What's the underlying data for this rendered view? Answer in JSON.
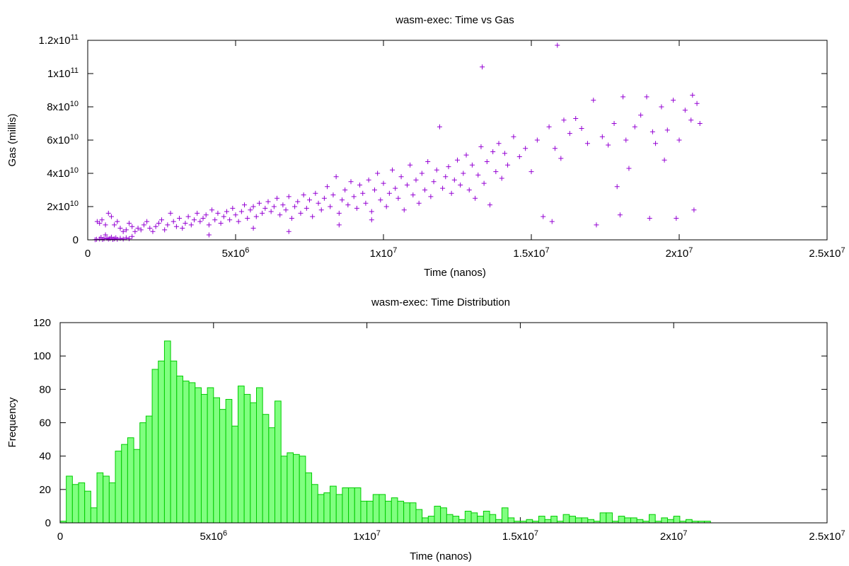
{
  "chart_data": [
    {
      "type": "scatter",
      "title": "wasm-exec: Time vs Gas",
      "xlabel": "Time (nanos)",
      "ylabel": "Gas (millis)",
      "xlim": [
        0,
        25000000
      ],
      "ylim": [
        0,
        120000000000
      ],
      "xticks": [
        {
          "value": 0,
          "base": "0",
          "exp": ""
        },
        {
          "value": 5000000,
          "base": "5x10",
          "exp": "6"
        },
        {
          "value": 10000000,
          "base": "1x10",
          "exp": "7"
        },
        {
          "value": 15000000,
          "base": "1.5x10",
          "exp": "7"
        },
        {
          "value": 20000000,
          "base": "2x10",
          "exp": "7"
        },
        {
          "value": 25000000,
          "base": "2.5x10",
          "exp": "7"
        }
      ],
      "yticks": [
        {
          "value": 0,
          "base": "0",
          "exp": ""
        },
        {
          "value": 20000000000,
          "base": "2x10",
          "exp": "10"
        },
        {
          "value": 40000000000,
          "base": "4x10",
          "exp": "10"
        },
        {
          "value": 60000000000,
          "base": "6x10",
          "exp": "10"
        },
        {
          "value": 80000000000,
          "base": "8x10",
          "exp": "10"
        },
        {
          "value": 100000000000,
          "base": "1x10",
          "exp": "11"
        },
        {
          "value": 120000000000,
          "base": "1.2x10",
          "exp": "11"
        }
      ],
      "marker": "+",
      "color": "#9400D3",
      "grid": false,
      "points": [
        [
          250000,
          100000000
        ],
        [
          300000,
          300000000
        ],
        [
          400000,
          500000000
        ],
        [
          450000,
          1500000000
        ],
        [
          500000,
          200000000
        ],
        [
          550000,
          600000000
        ],
        [
          600000,
          3000000000
        ],
        [
          650000,
          1000000000
        ],
        [
          700000,
          400000000
        ],
        [
          750000,
          800000000
        ],
        [
          800000,
          1600000000
        ],
        [
          850000,
          200000000
        ],
        [
          900000,
          600000000
        ],
        [
          950000,
          1200000000
        ],
        [
          1000000,
          300000000
        ],
        [
          1100000,
          900000000
        ],
        [
          1200000,
          500000000
        ],
        [
          1300000,
          1200000000
        ],
        [
          1400000,
          700000000
        ],
        [
          1500000,
          2000000000
        ],
        [
          320000,
          11000000000
        ],
        [
          400000,
          10000000000
        ],
        [
          480000,
          12000000000
        ],
        [
          600000,
          9000000000
        ],
        [
          700000,
          16000000000
        ],
        [
          800000,
          14000000000
        ],
        [
          900000,
          9000000000
        ],
        [
          1000000,
          11000000000
        ],
        [
          1100000,
          7000000000
        ],
        [
          1200000,
          5000000000
        ],
        [
          1300000,
          6000000000
        ],
        [
          1400000,
          10000000000
        ],
        [
          1500000,
          8000000000
        ],
        [
          1600000,
          5000000000
        ],
        [
          1700000,
          7000000000
        ],
        [
          1800000,
          6000000000
        ],
        [
          1900000,
          9000000000
        ],
        [
          2000000,
          11000000000
        ],
        [
          2100000,
          7000000000
        ],
        [
          2200000,
          5000000000
        ],
        [
          2300000,
          8000000000
        ],
        [
          2400000,
          10000000000
        ],
        [
          2500000,
          12000000000
        ],
        [
          2600000,
          6000000000
        ],
        [
          2700000,
          9000000000
        ],
        [
          2800000,
          16000000000
        ],
        [
          2900000,
          11000000000
        ],
        [
          3000000,
          8000000000
        ],
        [
          3100000,
          13000000000
        ],
        [
          3200000,
          7000000000
        ],
        [
          3300000,
          10000000000
        ],
        [
          3400000,
          14000000000
        ],
        [
          3500000,
          9000000000
        ],
        [
          3600000,
          12000000000
        ],
        [
          3700000,
          16000000000
        ],
        [
          3800000,
          11000000000
        ],
        [
          3900000,
          13000000000
        ],
        [
          4000000,
          15000000000
        ],
        [
          4100000,
          9000000000
        ],
        [
          4200000,
          18000000000
        ],
        [
          4300000,
          12000000000
        ],
        [
          4400000,
          16000000000
        ],
        [
          4500000,
          10000000000
        ],
        [
          4600000,
          14000000000
        ],
        [
          4700000,
          17000000000
        ],
        [
          4800000,
          12000000000
        ],
        [
          4900000,
          19000000000
        ],
        [
          5000000,
          15000000000
        ],
        [
          5100000,
          11000000000
        ],
        [
          5200000,
          17000000000
        ],
        [
          5300000,
          21000000000
        ],
        [
          5400000,
          13000000000
        ],
        [
          5500000,
          18000000000
        ],
        [
          5600000,
          20000000000
        ],
        [
          5700000,
          14000000000
        ],
        [
          5800000,
          22000000000
        ],
        [
          5900000,
          16000000000
        ],
        [
          6000000,
          19000000000
        ],
        [
          6100000,
          23000000000
        ],
        [
          6200000,
          17000000000
        ],
        [
          6300000,
          20000000000
        ],
        [
          6400000,
          25000000000
        ],
        [
          6500000,
          15000000000
        ],
        [
          6600000,
          21000000000
        ],
        [
          6700000,
          18000000000
        ],
        [
          6800000,
          26000000000
        ],
        [
          6900000,
          13000000000
        ],
        [
          7000000,
          20000000000
        ],
        [
          7100000,
          23000000000
        ],
        [
          7200000,
          16000000000
        ],
        [
          7300000,
          27000000000
        ],
        [
          7400000,
          19000000000
        ],
        [
          7500000,
          24000000000
        ],
        [
          7600000,
          14000000000
        ],
        [
          7700000,
          28000000000
        ],
        [
          7800000,
          22000000000
        ],
        [
          7900000,
          18000000000
        ],
        [
          8000000,
          25000000000
        ],
        [
          8100000,
          32000000000
        ],
        [
          8200000,
          20000000000
        ],
        [
          8300000,
          27000000000
        ],
        [
          8400000,
          38000000000
        ],
        [
          8500000,
          16000000000
        ],
        [
          8600000,
          24000000000
        ],
        [
          8700000,
          30000000000
        ],
        [
          8800000,
          21000000000
        ],
        [
          8900000,
          35000000000
        ],
        [
          9000000,
          26000000000
        ],
        [
          9100000,
          19000000000
        ],
        [
          9200000,
          33000000000
        ],
        [
          9300000,
          28000000000
        ],
        [
          9400000,
          22000000000
        ],
        [
          9500000,
          36000000000
        ],
        [
          9600000,
          17000000000
        ],
        [
          9700000,
          30000000000
        ],
        [
          9800000,
          40000000000
        ],
        [
          9900000,
          24000000000
        ],
        [
          10000000,
          34000000000
        ],
        [
          10100000,
          20000000000
        ],
        [
          10200000,
          28000000000
        ],
        [
          10300000,
          42000000000
        ],
        [
          10400000,
          31000000000
        ],
        [
          10500000,
          25000000000
        ],
        [
          10600000,
          38000000000
        ],
        [
          10700000,
          18000000000
        ],
        [
          10800000,
          33000000000
        ],
        [
          10900000,
          45000000000
        ],
        [
          11000000,
          27000000000
        ],
        [
          11100000,
          36000000000
        ],
        [
          11200000,
          22000000000
        ],
        [
          11300000,
          40000000000
        ],
        [
          11400000,
          30000000000
        ],
        [
          11500000,
          47000000000
        ],
        [
          11600000,
          26000000000
        ],
        [
          11700000,
          35000000000
        ],
        [
          11800000,
          42000000000
        ],
        [
          11900000,
          68000000000
        ],
        [
          12000000,
          31000000000
        ],
        [
          12100000,
          38000000000
        ],
        [
          12200000,
          44000000000
        ],
        [
          12300000,
          28000000000
        ],
        [
          12400000,
          36000000000
        ],
        [
          12500000,
          48000000000
        ],
        [
          12600000,
          33000000000
        ],
        [
          12700000,
          40000000000
        ],
        [
          12800000,
          51000000000
        ],
        [
          12900000,
          30000000000
        ],
        [
          13000000,
          45000000000
        ],
        [
          13100000,
          25000000000
        ],
        [
          13200000,
          39000000000
        ],
        [
          13300000,
          56000000000
        ],
        [
          13340000,
          104000000000
        ],
        [
          13400000,
          34000000000
        ],
        [
          13500000,
          47000000000
        ],
        [
          13600000,
          21000000000
        ],
        [
          13700000,
          53000000000
        ],
        [
          13800000,
          41000000000
        ],
        [
          13900000,
          58000000000
        ],
        [
          14000000,
          37000000000
        ],
        [
          14100000,
          52000000000
        ],
        [
          14200000,
          45000000000
        ],
        [
          14400000,
          62000000000
        ],
        [
          14600000,
          50000000000
        ],
        [
          14800000,
          55000000000
        ],
        [
          15000000,
          41000000000
        ],
        [
          15200000,
          60000000000
        ],
        [
          15400000,
          14000000000
        ],
        [
          15600000,
          68000000000
        ],
        [
          15700000,
          11000000000
        ],
        [
          15800000,
          55000000000
        ],
        [
          15880000,
          117000000000
        ],
        [
          16000000,
          49000000000
        ],
        [
          16100000,
          72000000000
        ],
        [
          16300000,
          64000000000
        ],
        [
          16500000,
          73000000000
        ],
        [
          16700000,
          67000000000
        ],
        [
          16900000,
          58000000000
        ],
        [
          17100000,
          84000000000
        ],
        [
          17200000,
          9000000000
        ],
        [
          17400000,
          62000000000
        ],
        [
          17600000,
          57000000000
        ],
        [
          17800000,
          70000000000
        ],
        [
          17900000,
          32000000000
        ],
        [
          18000000,
          15000000000
        ],
        [
          18100000,
          86000000000
        ],
        [
          18200000,
          60000000000
        ],
        [
          18300000,
          43000000000
        ],
        [
          18500000,
          68000000000
        ],
        [
          18700000,
          75000000000
        ],
        [
          18900000,
          86000000000
        ],
        [
          19000000,
          13000000000
        ],
        [
          19100000,
          65000000000
        ],
        [
          19200000,
          58000000000
        ],
        [
          19400000,
          80000000000
        ],
        [
          19500000,
          48000000000
        ],
        [
          19600000,
          66000000000
        ],
        [
          19800000,
          84000000000
        ],
        [
          19900000,
          13000000000
        ],
        [
          20000000,
          60000000000
        ],
        [
          20200000,
          78000000000
        ],
        [
          20400000,
          72000000000
        ],
        [
          20450000,
          87000000000
        ],
        [
          20500000,
          18000000000
        ],
        [
          20600000,
          82000000000
        ],
        [
          20700000,
          70000000000
        ],
        [
          4100000,
          3000000000
        ],
        [
          5600000,
          7000000000
        ],
        [
          6800000,
          5000000000
        ],
        [
          8500000,
          9000000000
        ],
        [
          9600000,
          12000000000
        ]
      ]
    },
    {
      "type": "bar",
      "title": "wasm-exec: Time Distribution",
      "xlabel": "Time (nanos)",
      "ylabel": "Frequency",
      "xlim": [
        0,
        25000000
      ],
      "ylim": [
        0,
        120
      ],
      "bin_width": 200000,
      "bin_start": 0,
      "fill_color": "#80FF80",
      "edge_color": "#00CC00",
      "grid": false,
      "xticks": [
        {
          "value": 0,
          "base": "0",
          "exp": ""
        },
        {
          "value": 5000000,
          "base": "5x10",
          "exp": "6"
        },
        {
          "value": 10000000,
          "base": "1x10",
          "exp": "7"
        },
        {
          "value": 15000000,
          "base": "1.5x10",
          "exp": "7"
        },
        {
          "value": 20000000,
          "base": "2x10",
          "exp": "7"
        },
        {
          "value": 25000000,
          "base": "2.5x10",
          "exp": "7"
        }
      ],
      "yticks": [
        {
          "value": 0,
          "base": "0",
          "exp": ""
        },
        {
          "value": 20,
          "base": "20",
          "exp": ""
        },
        {
          "value": 40,
          "base": "40",
          "exp": ""
        },
        {
          "value": 60,
          "base": "60",
          "exp": ""
        },
        {
          "value": 80,
          "base": "80",
          "exp": ""
        },
        {
          "value": 100,
          "base": "100",
          "exp": ""
        },
        {
          "value": 120,
          "base": "120",
          "exp": ""
        }
      ],
      "values": [
        1,
        28,
        23,
        24,
        19,
        9,
        30,
        28,
        24,
        43,
        47,
        51,
        44,
        60,
        64,
        92,
        97,
        109,
        97,
        88,
        85,
        84,
        81,
        77,
        81,
        75,
        68,
        74,
        58,
        82,
        77,
        72,
        81,
        65,
        57,
        73,
        40,
        42,
        41,
        40,
        30,
        23,
        17,
        18,
        22,
        17,
        21,
        21,
        21,
        13,
        13,
        17,
        17,
        13,
        15,
        13,
        12,
        12,
        8,
        3,
        4,
        10,
        9,
        5,
        4,
        2,
        7,
        6,
        4,
        7,
        5,
        2,
        9,
        3,
        1,
        1,
        2,
        1,
        4,
        2,
        4,
        1,
        5,
        4,
        3,
        3,
        2,
        1,
        6,
        6,
        1,
        4,
        3,
        3,
        2,
        1,
        5,
        1,
        3,
        2,
        4,
        1,
        2,
        1,
        1,
        1
      ]
    }
  ]
}
